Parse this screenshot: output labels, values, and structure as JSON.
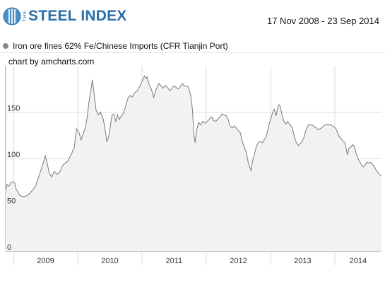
{
  "header": {
    "logo_text": "STEEL INDEX",
    "logo_prefix": "THE",
    "date_range": "17 Nov 2008 - 23 Sep 2014"
  },
  "legend": {
    "series_label": "Iron ore fines 62% Fe/Chinese Imports (CFR Tianjin Port)",
    "dot_color": "#888888"
  },
  "credit": "chart by amcharts.com",
  "colors": {
    "line": "#7a7a7a",
    "fill": "#f2f2f2",
    "grid": "#dcdcdc",
    "axis": "#999999"
  },
  "chart_data": {
    "type": "area",
    "title": "",
    "xlabel": "",
    "ylabel": "",
    "ylim": [
      0,
      200
    ],
    "xlim": [
      "2008-11-17",
      "2014-09-23"
    ],
    "y_ticks": [
      "0",
      "50",
      "100",
      "150"
    ],
    "x_ticks": [
      "2009",
      "2010",
      "2011",
      "2012",
      "2013",
      "2014"
    ],
    "grid": true,
    "legend_position": "top-left",
    "series": [
      {
        "name": "Iron ore fines 62% Fe/Chinese Imports (CFR Tianjin Port)",
        "points": [
          [
            "2008-11-17",
            66
          ],
          [
            "2008-11-25",
            72
          ],
          [
            "2008-12-05",
            70
          ],
          [
            "2008-12-18",
            74
          ],
          [
            "2008-12-30",
            75
          ],
          [
            "2009-01-08",
            73
          ],
          [
            "2009-01-15",
            67
          ],
          [
            "2009-01-25",
            64
          ],
          [
            "2009-02-06",
            60
          ],
          [
            "2009-02-20",
            59
          ],
          [
            "2009-03-05",
            59
          ],
          [
            "2009-03-20",
            60
          ],
          [
            "2009-04-05",
            63
          ],
          [
            "2009-04-20",
            66
          ],
          [
            "2009-05-05",
            70
          ],
          [
            "2009-05-20",
            78
          ],
          [
            "2009-06-05",
            87
          ],
          [
            "2009-06-20",
            96
          ],
          [
            "2009-06-30",
            103
          ],
          [
            "2009-07-10",
            96
          ],
          [
            "2009-07-22",
            85
          ],
          [
            "2009-08-05",
            80
          ],
          [
            "2009-08-20",
            86
          ],
          [
            "2009-09-05",
            83
          ],
          [
            "2009-09-20",
            85
          ],
          [
            "2009-10-05",
            92
          ],
          [
            "2009-10-20",
            95
          ],
          [
            "2009-11-05",
            97
          ],
          [
            "2009-11-20",
            103
          ],
          [
            "2009-12-01",
            107
          ],
          [
            "2009-12-12",
            112
          ],
          [
            "2009-12-25",
            132
          ],
          [
            "2010-01-08",
            128
          ],
          [
            "2010-01-20",
            120
          ],
          [
            "2010-02-01",
            127
          ],
          [
            "2010-02-12",
            133
          ],
          [
            "2010-02-22",
            143
          ],
          [
            "2010-03-05",
            160
          ],
          [
            "2010-03-15",
            172
          ],
          [
            "2010-03-25",
            185
          ],
          [
            "2010-04-05",
            168
          ],
          [
            "2010-04-15",
            152
          ],
          [
            "2010-04-28",
            147
          ],
          [
            "2010-05-10",
            150
          ],
          [
            "2010-05-25",
            143
          ],
          [
            "2010-06-05",
            132
          ],
          [
            "2010-06-15",
            118
          ],
          [
            "2010-06-25",
            123
          ],
          [
            "2010-07-05",
            135
          ],
          [
            "2010-07-15",
            147
          ],
          [
            "2010-07-25",
            148
          ],
          [
            "2010-08-05",
            140
          ],
          [
            "2010-08-15",
            147
          ],
          [
            "2010-08-25",
            142
          ],
          [
            "2010-09-05",
            146
          ],
          [
            "2010-09-15",
            148
          ],
          [
            "2010-09-25",
            153
          ],
          [
            "2010-10-05",
            160
          ],
          [
            "2010-10-15",
            166
          ],
          [
            "2010-10-25",
            168
          ],
          [
            "2010-11-05",
            166
          ],
          [
            "2010-11-20",
            171
          ],
          [
            "2010-12-05",
            173
          ],
          [
            "2010-12-20",
            178
          ],
          [
            "2011-01-05",
            185
          ],
          [
            "2011-01-15",
            189
          ],
          [
            "2011-01-22",
            186
          ],
          [
            "2011-01-30",
            188
          ],
          [
            "2011-02-10",
            180
          ],
          [
            "2011-02-25",
            174
          ],
          [
            "2011-03-08",
            166
          ],
          [
            "2011-03-18",
            172
          ],
          [
            "2011-03-28",
            177
          ],
          [
            "2011-04-08",
            181
          ],
          [
            "2011-04-20",
            178
          ],
          [
            "2011-05-02",
            176
          ],
          [
            "2011-05-15",
            179
          ],
          [
            "2011-05-28",
            176
          ],
          [
            "2011-06-08",
            173
          ],
          [
            "2011-06-20",
            176
          ],
          [
            "2011-07-01",
            178
          ],
          [
            "2011-07-12",
            177
          ],
          [
            "2011-07-25",
            175
          ],
          [
            "2011-08-05",
            177
          ],
          [
            "2011-08-18",
            181
          ],
          [
            "2011-08-30",
            178
          ],
          [
            "2011-09-10",
            178
          ],
          [
            "2011-09-22",
            177
          ],
          [
            "2011-10-05",
            168
          ],
          [
            "2011-10-15",
            152
          ],
          [
            "2011-10-22",
            128
          ],
          [
            "2011-10-30",
            117
          ],
          [
            "2011-11-08",
            131
          ],
          [
            "2011-11-18",
            139
          ],
          [
            "2011-12-01",
            136
          ],
          [
            "2011-12-12",
            140
          ],
          [
            "2011-12-25",
            138
          ],
          [
            "2012-01-08",
            140
          ],
          [
            "2012-01-20",
            143
          ],
          [
            "2012-02-01",
            145
          ],
          [
            "2012-02-12",
            141
          ],
          [
            "2012-02-25",
            140
          ],
          [
            "2012-03-08",
            143
          ],
          [
            "2012-03-20",
            145
          ],
          [
            "2012-04-01",
            148
          ],
          [
            "2012-04-12",
            147
          ],
          [
            "2012-04-25",
            146
          ],
          [
            "2012-05-05",
            142
          ],
          [
            "2012-05-15",
            135
          ],
          [
            "2012-05-28",
            133
          ],
          [
            "2012-06-08",
            135
          ],
          [
            "2012-06-20",
            133
          ],
          [
            "2012-07-01",
            130
          ],
          [
            "2012-07-12",
            128
          ],
          [
            "2012-07-25",
            118
          ],
          [
            "2012-08-05",
            112
          ],
          [
            "2012-08-15",
            107
          ],
          [
            "2012-08-25",
            97
          ],
          [
            "2012-09-05",
            90
          ],
          [
            "2012-09-12",
            87
          ],
          [
            "2012-09-20",
            97
          ],
          [
            "2012-10-01",
            105
          ],
          [
            "2012-10-12",
            113
          ],
          [
            "2012-10-25",
            118
          ],
          [
            "2012-11-05",
            118
          ],
          [
            "2012-11-15",
            117
          ],
          [
            "2012-11-25",
            120
          ],
          [
            "2012-12-05",
            123
          ],
          [
            "2012-12-15",
            130
          ],
          [
            "2012-12-25",
            138
          ],
          [
            "2013-01-05",
            145
          ],
          [
            "2013-01-15",
            151
          ],
          [
            "2013-01-22",
            153
          ],
          [
            "2013-02-01",
            146
          ],
          [
            "2013-02-10",
            155
          ],
          [
            "2013-02-18",
            158
          ],
          [
            "2013-02-25",
            156
          ],
          [
            "2013-03-08",
            146
          ],
          [
            "2013-03-18",
            140
          ],
          [
            "2013-03-28",
            137
          ],
          [
            "2013-04-08",
            140
          ],
          [
            "2013-04-18",
            137
          ],
          [
            "2013-04-28",
            135
          ],
          [
            "2013-05-08",
            130
          ],
          [
            "2013-05-18",
            122
          ],
          [
            "2013-05-28",
            117
          ],
          [
            "2013-06-08",
            114
          ],
          [
            "2013-06-18",
            116
          ],
          [
            "2013-06-28",
            118
          ],
          [
            "2013-07-08",
            122
          ],
          [
            "2013-07-18",
            129
          ],
          [
            "2013-07-28",
            134
          ],
          [
            "2013-08-08",
            137
          ],
          [
            "2013-08-18",
            136
          ],
          [
            "2013-08-28",
            136
          ],
          [
            "2013-09-08",
            134
          ],
          [
            "2013-09-18",
            133
          ],
          [
            "2013-09-28",
            131
          ],
          [
            "2013-10-08",
            132
          ],
          [
            "2013-10-18",
            133
          ],
          [
            "2013-10-28",
            135
          ],
          [
            "2013-11-08",
            136
          ],
          [
            "2013-11-18",
            137
          ],
          [
            "2013-11-28",
            136
          ],
          [
            "2013-12-08",
            137
          ],
          [
            "2013-12-18",
            135
          ],
          [
            "2013-12-28",
            134
          ],
          [
            "2014-01-08",
            132
          ],
          [
            "2014-01-18",
            127
          ],
          [
            "2014-01-28",
            123
          ],
          [
            "2014-02-08",
            121
          ],
          [
            "2014-02-18",
            118
          ],
          [
            "2014-02-28",
            117
          ],
          [
            "2014-03-08",
            109
          ],
          [
            "2014-03-14",
            104
          ],
          [
            "2014-03-22",
            111
          ],
          [
            "2014-04-01",
            112
          ],
          [
            "2014-04-12",
            115
          ],
          [
            "2014-04-22",
            113
          ],
          [
            "2014-05-02",
            106
          ],
          [
            "2014-05-12",
            100
          ],
          [
            "2014-05-22",
            97
          ],
          [
            "2014-06-02",
            93
          ],
          [
            "2014-06-12",
            91
          ],
          [
            "2014-06-22",
            93
          ],
          [
            "2014-07-02",
            96
          ],
          [
            "2014-07-12",
            95
          ],
          [
            "2014-07-22",
            96
          ],
          [
            "2014-08-01",
            94
          ],
          [
            "2014-08-12",
            92
          ],
          [
            "2014-08-22",
            88
          ],
          [
            "2014-09-02",
            85
          ],
          [
            "2014-09-12",
            83
          ],
          [
            "2014-09-23",
            81
          ]
        ]
      }
    ]
  }
}
